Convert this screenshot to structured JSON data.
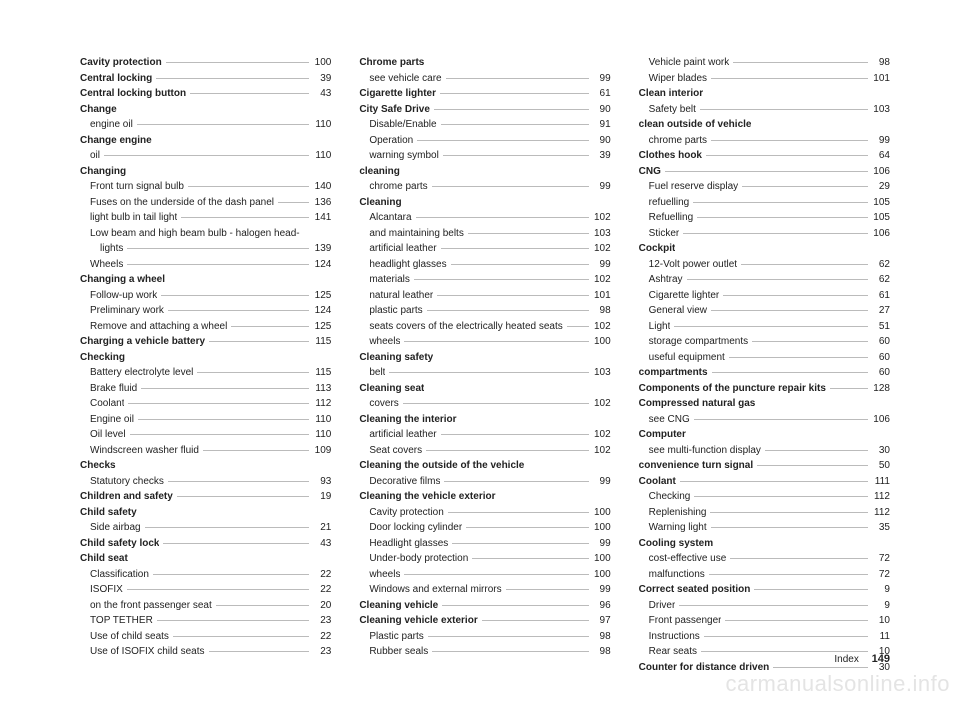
{
  "columns": [
    [
      {
        "label": "Cavity protection",
        "page": "100",
        "bold": true,
        "indent": 0,
        "leader": true
      },
      {
        "label": "Central locking",
        "page": "39",
        "bold": true,
        "indent": 0,
        "leader": true
      },
      {
        "label": "Central locking button",
        "page": "43",
        "bold": true,
        "indent": 0,
        "leader": true
      },
      {
        "label": "Change",
        "page": "",
        "bold": true,
        "indent": 0,
        "leader": false
      },
      {
        "label": "engine oil",
        "page": "110",
        "bold": false,
        "indent": 1,
        "leader": true
      },
      {
        "label": "Change engine",
        "page": "",
        "bold": true,
        "indent": 0,
        "leader": false
      },
      {
        "label": "oil",
        "page": "110",
        "bold": false,
        "indent": 1,
        "leader": true
      },
      {
        "label": "Changing",
        "page": "",
        "bold": true,
        "indent": 0,
        "leader": false
      },
      {
        "label": "Front turn signal bulb",
        "page": "140",
        "bold": false,
        "indent": 1,
        "leader": true
      },
      {
        "label": "Fuses on the underside of the dash panel",
        "page": "136",
        "bold": false,
        "indent": 1,
        "leader": true
      },
      {
        "label": "light bulb in tail light",
        "page": "141",
        "bold": false,
        "indent": 1,
        "leader": true
      },
      {
        "label": "Low beam and high beam bulb - halogen head-",
        "page": "",
        "bold": false,
        "indent": 1,
        "leader": false
      },
      {
        "label": "lights",
        "page": "139",
        "bold": false,
        "indent": 2,
        "leader": true
      },
      {
        "label": "Wheels",
        "page": "124",
        "bold": false,
        "indent": 1,
        "leader": true
      },
      {
        "label": "Changing a wheel",
        "page": "",
        "bold": true,
        "indent": 0,
        "leader": false
      },
      {
        "label": "Follow-up work",
        "page": "125",
        "bold": false,
        "indent": 1,
        "leader": true
      },
      {
        "label": "Preliminary work",
        "page": "124",
        "bold": false,
        "indent": 1,
        "leader": true
      },
      {
        "label": "Remove and attaching a wheel",
        "page": "125",
        "bold": false,
        "indent": 1,
        "leader": true
      },
      {
        "label": "Charging a vehicle battery",
        "page": "115",
        "bold": true,
        "indent": 0,
        "leader": true
      },
      {
        "label": "Checking",
        "page": "",
        "bold": true,
        "indent": 0,
        "leader": false
      },
      {
        "label": "Battery electrolyte level",
        "page": "115",
        "bold": false,
        "indent": 1,
        "leader": true
      },
      {
        "label": "Brake fluid",
        "page": "113",
        "bold": false,
        "indent": 1,
        "leader": true
      },
      {
        "label": "Coolant",
        "page": "112",
        "bold": false,
        "indent": 1,
        "leader": true
      },
      {
        "label": "Engine oil",
        "page": "110",
        "bold": false,
        "indent": 1,
        "leader": true
      },
      {
        "label": "Oil level",
        "page": "110",
        "bold": false,
        "indent": 1,
        "leader": true
      },
      {
        "label": "Windscreen washer fluid",
        "page": "109",
        "bold": false,
        "indent": 1,
        "leader": true
      },
      {
        "label": "Checks",
        "page": "",
        "bold": true,
        "indent": 0,
        "leader": false
      },
      {
        "label": "Statutory checks",
        "page": "93",
        "bold": false,
        "indent": 1,
        "leader": true
      },
      {
        "label": "Children and safety",
        "page": "19",
        "bold": true,
        "indent": 0,
        "leader": true
      },
      {
        "label": "Child safety",
        "page": "",
        "bold": true,
        "indent": 0,
        "leader": false
      },
      {
        "label": "Side airbag",
        "page": "21",
        "bold": false,
        "indent": 1,
        "leader": true
      },
      {
        "label": "Child safety lock",
        "page": "43",
        "bold": true,
        "indent": 0,
        "leader": true
      },
      {
        "label": "Child seat",
        "page": "",
        "bold": true,
        "indent": 0,
        "leader": false
      },
      {
        "label": "Classification",
        "page": "22",
        "bold": false,
        "indent": 1,
        "leader": true
      },
      {
        "label": "ISOFIX",
        "page": "22",
        "bold": false,
        "indent": 1,
        "leader": true
      },
      {
        "label": "on the front passenger seat",
        "page": "20",
        "bold": false,
        "indent": 1,
        "leader": true
      },
      {
        "label": "TOP TETHER",
        "page": "23",
        "bold": false,
        "indent": 1,
        "leader": true
      },
      {
        "label": "Use of child seats",
        "page": "22",
        "bold": false,
        "indent": 1,
        "leader": true
      },
      {
        "label": "Use of ISOFIX child seats",
        "page": "23",
        "bold": false,
        "indent": 1,
        "leader": true
      }
    ],
    [
      {
        "label": "Chrome parts",
        "page": "",
        "bold": true,
        "indent": 0,
        "leader": false
      },
      {
        "label": "see vehicle care",
        "page": "99",
        "bold": false,
        "indent": 1,
        "leader": true
      },
      {
        "label": "Cigarette lighter",
        "page": "61",
        "bold": true,
        "indent": 0,
        "leader": true
      },
      {
        "label": "City Safe Drive",
        "page": "90",
        "bold": true,
        "indent": 0,
        "leader": true
      },
      {
        "label": "Disable/Enable",
        "page": "91",
        "bold": false,
        "indent": 1,
        "leader": true
      },
      {
        "label": "Operation",
        "page": "90",
        "bold": false,
        "indent": 1,
        "leader": true
      },
      {
        "label": "warning symbol",
        "page": "39",
        "bold": false,
        "indent": 1,
        "leader": true
      },
      {
        "label": "cleaning",
        "page": "",
        "bold": true,
        "indent": 0,
        "leader": false
      },
      {
        "label": "chrome parts",
        "page": "99",
        "bold": false,
        "indent": 1,
        "leader": true
      },
      {
        "label": "Cleaning",
        "page": "",
        "bold": true,
        "indent": 0,
        "leader": false
      },
      {
        "label": "Alcantara",
        "page": "102",
        "bold": false,
        "indent": 1,
        "leader": true
      },
      {
        "label": "and maintaining belts",
        "page": "103",
        "bold": false,
        "indent": 1,
        "leader": true
      },
      {
        "label": "artificial leather",
        "page": "102",
        "bold": false,
        "indent": 1,
        "leader": true
      },
      {
        "label": "headlight glasses",
        "page": "99",
        "bold": false,
        "indent": 1,
        "leader": true
      },
      {
        "label": "materials",
        "page": "102",
        "bold": false,
        "indent": 1,
        "leader": true
      },
      {
        "label": "natural leather",
        "page": "101",
        "bold": false,
        "indent": 1,
        "leader": true
      },
      {
        "label": "plastic parts",
        "page": "98",
        "bold": false,
        "indent": 1,
        "leader": true
      },
      {
        "label": "seats covers of the electrically heated seats",
        "page": "102",
        "bold": false,
        "indent": 1,
        "leader": true
      },
      {
        "label": "wheels",
        "page": "100",
        "bold": false,
        "indent": 1,
        "leader": true
      },
      {
        "label": "Cleaning safety",
        "page": "",
        "bold": true,
        "indent": 0,
        "leader": false
      },
      {
        "label": "belt",
        "page": "103",
        "bold": false,
        "indent": 1,
        "leader": true
      },
      {
        "label": "Cleaning seat",
        "page": "",
        "bold": true,
        "indent": 0,
        "leader": false
      },
      {
        "label": "covers",
        "page": "102",
        "bold": false,
        "indent": 1,
        "leader": true
      },
      {
        "label": "Cleaning the interior",
        "page": "",
        "bold": true,
        "indent": 0,
        "leader": false
      },
      {
        "label": "artificial leather",
        "page": "102",
        "bold": false,
        "indent": 1,
        "leader": true
      },
      {
        "label": "Seat covers",
        "page": "102",
        "bold": false,
        "indent": 1,
        "leader": true
      },
      {
        "label": "Cleaning the outside of the vehicle",
        "page": "",
        "bold": true,
        "indent": 0,
        "leader": false
      },
      {
        "label": "Decorative films",
        "page": "99",
        "bold": false,
        "indent": 1,
        "leader": true
      },
      {
        "label": "Cleaning the vehicle exterior",
        "page": "",
        "bold": true,
        "indent": 0,
        "leader": false
      },
      {
        "label": "Cavity protection",
        "page": "100",
        "bold": false,
        "indent": 1,
        "leader": true
      },
      {
        "label": "Door locking cylinder",
        "page": "100",
        "bold": false,
        "indent": 1,
        "leader": true
      },
      {
        "label": "Headlight glasses",
        "page": "99",
        "bold": false,
        "indent": 1,
        "leader": true
      },
      {
        "label": "Under-body protection",
        "page": "100",
        "bold": false,
        "indent": 1,
        "leader": true
      },
      {
        "label": "wheels",
        "page": "100",
        "bold": false,
        "indent": 1,
        "leader": true
      },
      {
        "label": "Windows and external mirrors",
        "page": "99",
        "bold": false,
        "indent": 1,
        "leader": true
      },
      {
        "label": "Cleaning vehicle",
        "page": "96",
        "bold": true,
        "indent": 0,
        "leader": true
      },
      {
        "label": "Cleaning vehicle exterior",
        "page": "97",
        "bold": true,
        "indent": 0,
        "leader": true
      },
      {
        "label": "Plastic parts",
        "page": "98",
        "bold": false,
        "indent": 1,
        "leader": true
      },
      {
        "label": "Rubber seals",
        "page": "98",
        "bold": false,
        "indent": 1,
        "leader": true
      }
    ],
    [
      {
        "label": "Vehicle paint work",
        "page": "98",
        "bold": false,
        "indent": 1,
        "leader": true
      },
      {
        "label": "Wiper blades",
        "page": "101",
        "bold": false,
        "indent": 1,
        "leader": true
      },
      {
        "label": "Clean interior",
        "page": "",
        "bold": true,
        "indent": 0,
        "leader": false
      },
      {
        "label": "Safety belt",
        "page": "103",
        "bold": false,
        "indent": 1,
        "leader": true
      },
      {
        "label": "clean outside of vehicle",
        "page": "",
        "bold": true,
        "indent": 0,
        "leader": false
      },
      {
        "label": "chrome parts",
        "page": "99",
        "bold": false,
        "indent": 1,
        "leader": true
      },
      {
        "label": "Clothes hook",
        "page": "64",
        "bold": true,
        "indent": 0,
        "leader": true
      },
      {
        "label": "CNG",
        "page": "106",
        "bold": true,
        "indent": 0,
        "leader": true
      },
      {
        "label": "Fuel reserve display",
        "page": "29",
        "bold": false,
        "indent": 1,
        "leader": true
      },
      {
        "label": "refuelling",
        "page": "105",
        "bold": false,
        "indent": 1,
        "leader": true
      },
      {
        "label": "Refuelling",
        "page": "105",
        "bold": false,
        "indent": 1,
        "leader": true
      },
      {
        "label": "Sticker",
        "page": "106",
        "bold": false,
        "indent": 1,
        "leader": true
      },
      {
        "label": "Cockpit",
        "page": "",
        "bold": true,
        "indent": 0,
        "leader": false
      },
      {
        "label": "12-Volt power outlet",
        "page": "62",
        "bold": false,
        "indent": 1,
        "leader": true
      },
      {
        "label": "Ashtray",
        "page": "62",
        "bold": false,
        "indent": 1,
        "leader": true
      },
      {
        "label": "Cigarette lighter",
        "page": "61",
        "bold": false,
        "indent": 1,
        "leader": true
      },
      {
        "label": "General view",
        "page": "27",
        "bold": false,
        "indent": 1,
        "leader": true
      },
      {
        "label": "Light",
        "page": "51",
        "bold": false,
        "indent": 1,
        "leader": true
      },
      {
        "label": "storage compartments",
        "page": "60",
        "bold": false,
        "indent": 1,
        "leader": true
      },
      {
        "label": "useful equipment",
        "page": "60",
        "bold": false,
        "indent": 1,
        "leader": true
      },
      {
        "label": "compartments",
        "page": "60",
        "bold": true,
        "indent": 0,
        "leader": true
      },
      {
        "label": "Components of the puncture repair kits",
        "page": "128",
        "bold": true,
        "indent": 0,
        "leader": true
      },
      {
        "label": "Compressed natural gas",
        "page": "",
        "bold": true,
        "indent": 0,
        "leader": false
      },
      {
        "label": "see CNG",
        "page": "106",
        "bold": false,
        "indent": 1,
        "leader": true
      },
      {
        "label": "Computer",
        "page": "",
        "bold": true,
        "indent": 0,
        "leader": false
      },
      {
        "label": "see multi-function display",
        "page": "30",
        "bold": false,
        "indent": 1,
        "leader": true
      },
      {
        "label": "convenience turn signal",
        "page": "50",
        "bold": true,
        "indent": 0,
        "leader": true
      },
      {
        "label": "Coolant",
        "page": "111",
        "bold": true,
        "indent": 0,
        "leader": true
      },
      {
        "label": "Checking",
        "page": "112",
        "bold": false,
        "indent": 1,
        "leader": true
      },
      {
        "label": "Replenishing",
        "page": "112",
        "bold": false,
        "indent": 1,
        "leader": true
      },
      {
        "label": "Warning light",
        "page": "35",
        "bold": false,
        "indent": 1,
        "leader": true
      },
      {
        "label": "Cooling system",
        "page": "",
        "bold": true,
        "indent": 0,
        "leader": false
      },
      {
        "label": "cost-effective use",
        "page": "72",
        "bold": false,
        "indent": 1,
        "leader": true
      },
      {
        "label": "malfunctions",
        "page": "72",
        "bold": false,
        "indent": 1,
        "leader": true
      },
      {
        "label": "Correct seated position",
        "page": "9",
        "bold": true,
        "indent": 0,
        "leader": true
      },
      {
        "label": "Driver",
        "page": "9",
        "bold": false,
        "indent": 1,
        "leader": true
      },
      {
        "label": "Front passenger",
        "page": "10",
        "bold": false,
        "indent": 1,
        "leader": true
      },
      {
        "label": "Instructions",
        "page": "11",
        "bold": false,
        "indent": 1,
        "leader": true
      },
      {
        "label": "Rear seats",
        "page": "10",
        "bold": false,
        "indent": 1,
        "leader": true
      },
      {
        "label": "Counter for distance driven",
        "page": "30",
        "bold": true,
        "indent": 0,
        "leader": true
      }
    ]
  ],
  "footer": {
    "label": "Index",
    "page": "149"
  },
  "watermark": "carmanualsonline.info"
}
